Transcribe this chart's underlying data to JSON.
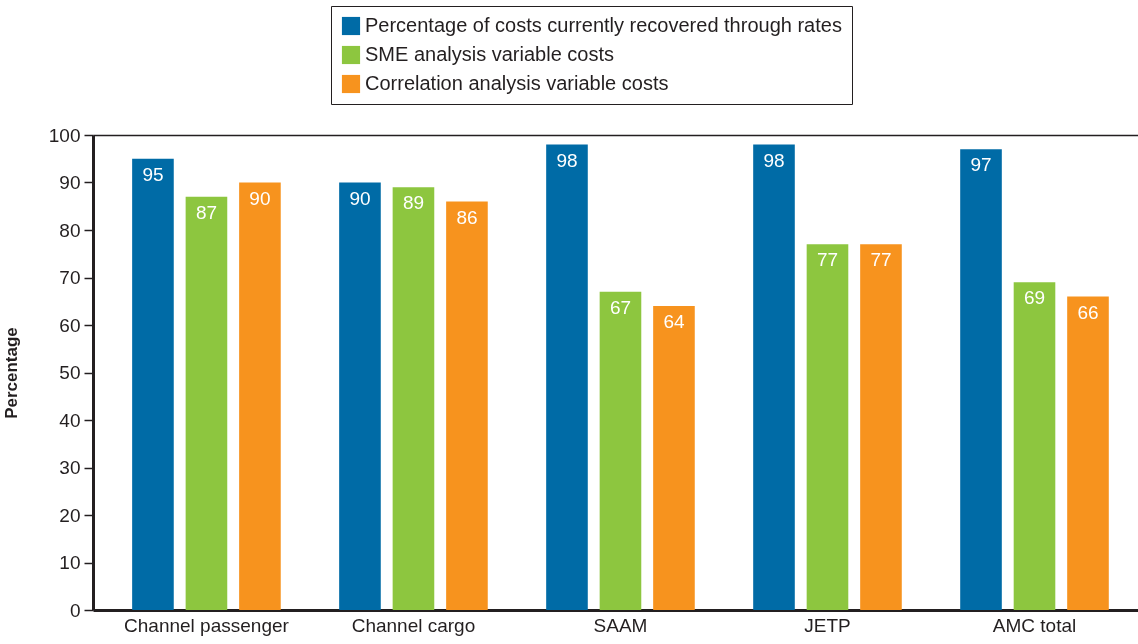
{
  "chart_data": {
    "type": "bar",
    "ylabel": "Percentage",
    "categories": [
      "Channel passenger",
      "Channel cargo",
      "SAAM",
      "JETP",
      "AMC total"
    ],
    "series": [
      {
        "name": "Percentage of costs currently recovered through rates",
        "color": "#006ba6",
        "values": [
          95,
          90,
          98,
          98,
          97
        ]
      },
      {
        "name": "SME analysis variable costs",
        "color": "#8dc63f",
        "values": [
          87,
          89,
          67,
          77,
          69
        ]
      },
      {
        "name": "Correlation analysis variable costs",
        "color": "#f7931e",
        "values": [
          90,
          86,
          64,
          77,
          66
        ]
      }
    ],
    "ylim": [
      0,
      100
    ],
    "yticks": [
      0,
      10,
      20,
      30,
      40,
      50,
      60,
      70,
      80,
      90,
      100
    ],
    "legend": "top",
    "data_labels": true
  }
}
